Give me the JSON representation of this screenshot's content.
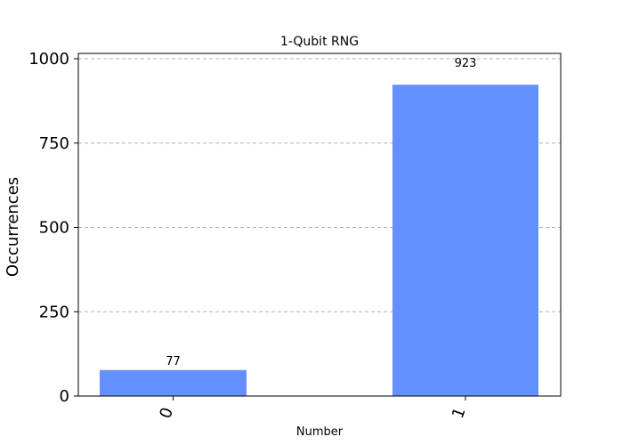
{
  "chart_data": {
    "type": "bar",
    "title": "1-Qubit RNG",
    "xlabel": "Number",
    "ylabel": "Occurrences",
    "categories": [
      "0",
      "1"
    ],
    "values": [
      77,
      923
    ],
    "data_labels": [
      "77",
      "923"
    ],
    "ylim": [
      0,
      1000
    ],
    "yticks": [
      0,
      250,
      500,
      750,
      1000
    ],
    "ytick_labels": [
      "0",
      "250",
      "500",
      "750",
      "1000"
    ],
    "grid": "horizontal dashed",
    "legend": "none",
    "colors": {
      "bar": "#648fff",
      "grid": "#b0b0b0",
      "axis": "#000000"
    }
  }
}
